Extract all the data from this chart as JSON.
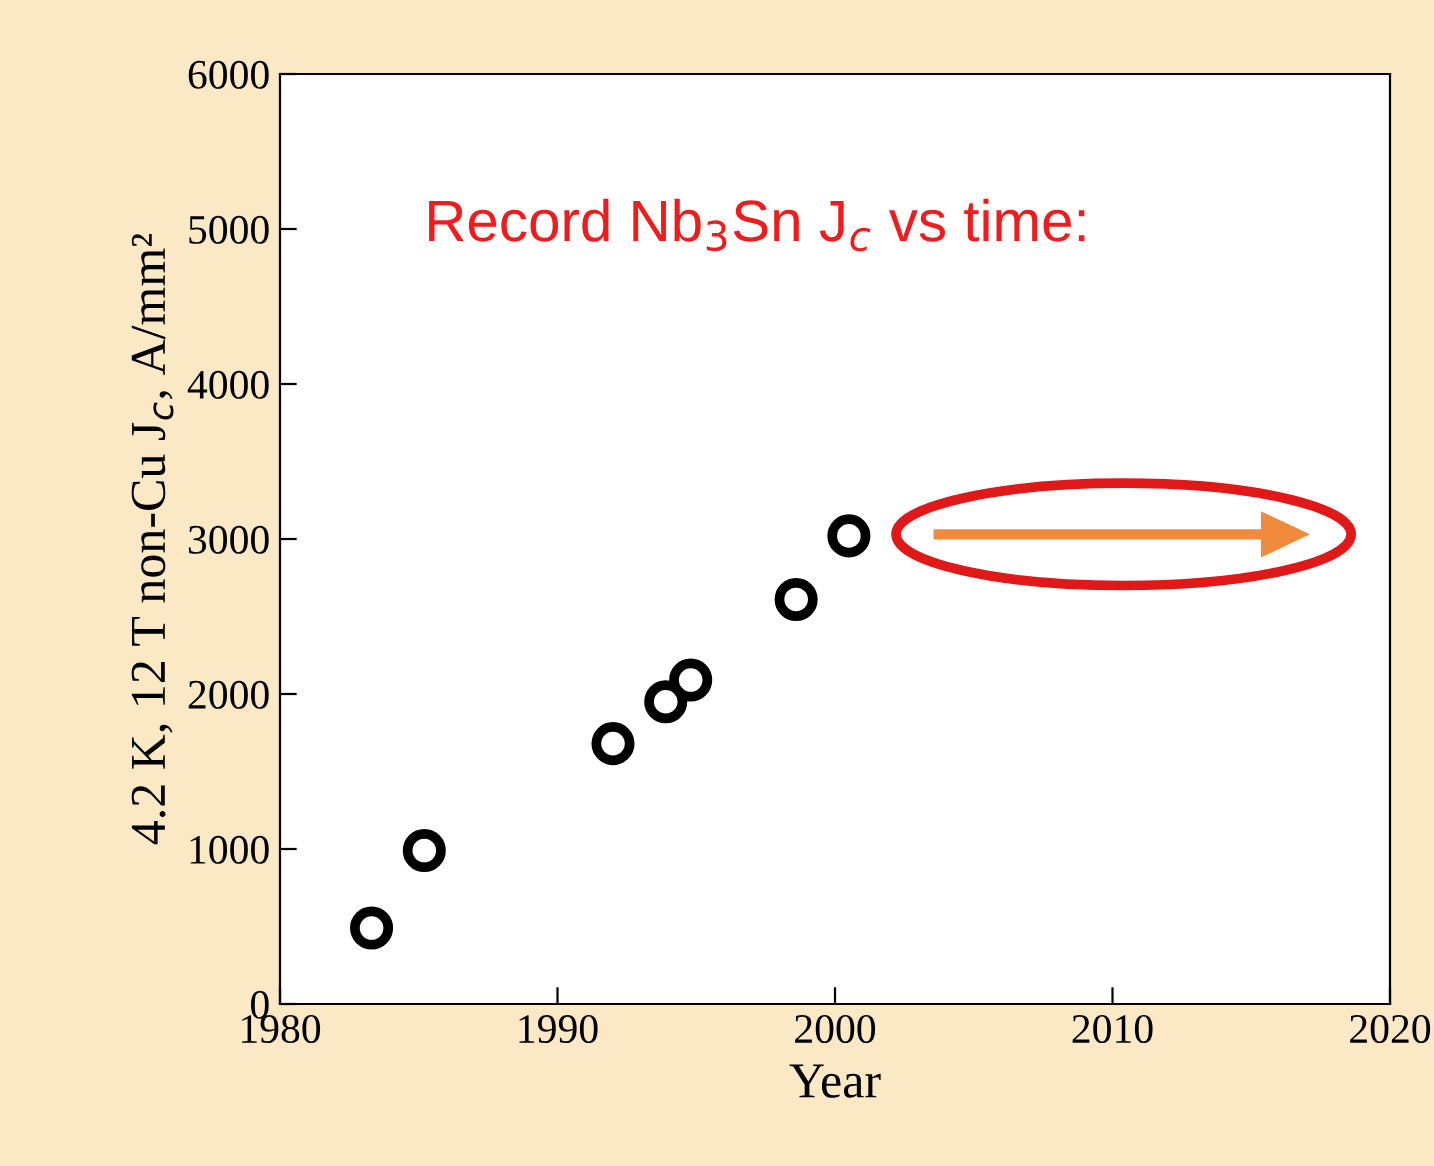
{
  "chart_data": {
    "type": "scatter",
    "xlabel": "Year",
    "ylabel": "4.2 K, 12 T non-Cu J$_{c}$, A/mm²",
    "x": [
      1983.3,
      1985.2,
      1992,
      1993.9,
      1994.8,
      1998.6,
      2000.5
    ],
    "values": [
      490,
      990,
      1680,
      1950,
      2090,
      2610,
      3020
    ],
    "color": "#000000",
    "marker": "circle",
    "xlim": [
      1980,
      2020
    ],
    "xticks": [
      1980,
      1990,
      2000,
      2010,
      2020
    ],
    "ylim": [
      0,
      6000
    ],
    "yticks": [
      0,
      1000,
      2000,
      3000,
      4000,
      5000,
      6000
    ],
    "grid": false,
    "annotations": [
      "Record Nb$_{3}$Sn J$_{c}$ vs time:"
    ]
  }
}
